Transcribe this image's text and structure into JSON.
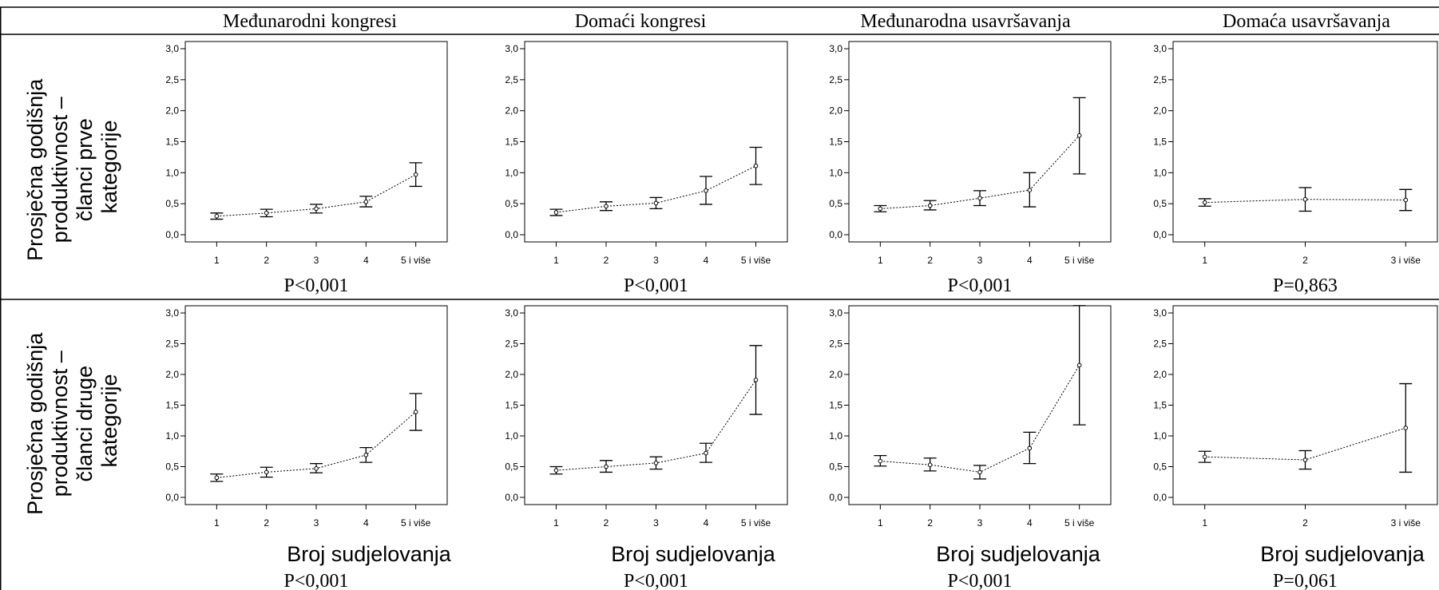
{
  "columns": [
    "Međunarodni kongresi",
    "Domaći kongresi",
    "Međunarodna usavršavanja",
    "Domaća usavršavanja"
  ],
  "row_labels": [
    [
      "Prosječna godišnja",
      "produktivnost –",
      "članci prve",
      "kategorije"
    ],
    [
      "Prosječna godišnja",
      "produktivnost –",
      "članci druge",
      "kategorije"
    ]
  ],
  "xlabel": "Broj sudjelovanja",
  "chart_data": [
    {
      "id": "r0c0",
      "type": "line",
      "error_bars": true,
      "row": 0,
      "col": 0,
      "categories": [
        "1",
        "2",
        "3",
        "4",
        "5 i više"
      ],
      "values": [
        0.3,
        0.35,
        0.42,
        0.53,
        0.97
      ],
      "ci_low": [
        0.25,
        0.29,
        0.35,
        0.45,
        0.78
      ],
      "ci_high": [
        0.35,
        0.41,
        0.49,
        0.62,
        1.16
      ],
      "ylim": [
        0,
        3
      ],
      "yticks": [
        "0,0",
        "0,5",
        "1,0",
        "1,5",
        "2,0",
        "2,5",
        "3,0"
      ],
      "p_value": "P<0,001"
    },
    {
      "id": "r0c1",
      "type": "line",
      "error_bars": true,
      "row": 0,
      "col": 1,
      "categories": [
        "1",
        "2",
        "3",
        "4",
        "5 i više"
      ],
      "values": [
        0.36,
        0.46,
        0.51,
        0.71,
        1.11
      ],
      "ci_low": [
        0.31,
        0.39,
        0.42,
        0.49,
        0.81
      ],
      "ci_high": [
        0.41,
        0.53,
        0.6,
        0.94,
        1.41
      ],
      "ylim": [
        0,
        3
      ],
      "yticks": [
        "0,0",
        "0,5",
        "1,0",
        "1,5",
        "2,0",
        "2,5",
        "3,0"
      ],
      "p_value": "P<0,001"
    },
    {
      "id": "r0c2",
      "type": "line",
      "error_bars": true,
      "row": 0,
      "col": 2,
      "categories": [
        "1",
        "2",
        "3",
        "4",
        "5 i više"
      ],
      "values": [
        0.42,
        0.47,
        0.59,
        0.72,
        1.6
      ],
      "ci_low": [
        0.37,
        0.4,
        0.47,
        0.45,
        0.98
      ],
      "ci_high": [
        0.47,
        0.55,
        0.71,
        1.0,
        2.21
      ],
      "ylim": [
        0,
        3
      ],
      "yticks": [
        "0,0",
        "0,5",
        "1,0",
        "1,5",
        "2,0",
        "2,5",
        "3,0"
      ],
      "p_value": "P<0,001"
    },
    {
      "id": "r0c3",
      "type": "line",
      "error_bars": true,
      "row": 0,
      "col": 3,
      "categories": [
        "1",
        "2",
        "3 i više"
      ],
      "values": [
        0.52,
        0.57,
        0.56
      ],
      "ci_low": [
        0.46,
        0.38,
        0.39
      ],
      "ci_high": [
        0.58,
        0.76,
        0.73
      ],
      "ylim": [
        0,
        3
      ],
      "yticks": [
        "0,0",
        "0,5",
        "1,0",
        "1,5",
        "2,0",
        "2,5",
        "3,0"
      ],
      "p_value": "P=0,863"
    },
    {
      "id": "r1c0",
      "type": "line",
      "error_bars": true,
      "row": 1,
      "col": 0,
      "categories": [
        "1",
        "2",
        "3",
        "4",
        "5 i više"
      ],
      "values": [
        0.32,
        0.41,
        0.47,
        0.69,
        1.39
      ],
      "ci_low": [
        0.26,
        0.33,
        0.4,
        0.57,
        1.09
      ],
      "ci_high": [
        0.38,
        0.49,
        0.55,
        0.81,
        1.69
      ],
      "ylim": [
        0,
        3
      ],
      "yticks": [
        "0,0",
        "0,5",
        "1,0",
        "1,5",
        "2,0",
        "2,5",
        "3,0"
      ],
      "p_value": "P<0,001"
    },
    {
      "id": "r1c1",
      "type": "line",
      "error_bars": true,
      "row": 1,
      "col": 1,
      "categories": [
        "1",
        "2",
        "3",
        "4",
        "5 i više"
      ],
      "values": [
        0.44,
        0.5,
        0.56,
        0.72,
        1.91
      ],
      "ci_low": [
        0.38,
        0.41,
        0.46,
        0.57,
        1.35
      ],
      "ci_high": [
        0.5,
        0.6,
        0.66,
        0.88,
        2.47
      ],
      "ylim": [
        0,
        3
      ],
      "yticks": [
        "0,0",
        "0,5",
        "1,0",
        "1,5",
        "2,0",
        "2,5",
        "3,0"
      ],
      "p_value": "P<0,001"
    },
    {
      "id": "r1c2",
      "type": "line",
      "error_bars": true,
      "row": 1,
      "col": 2,
      "categories": [
        "1",
        "2",
        "3",
        "4",
        "5 i više"
      ],
      "values": [
        0.59,
        0.53,
        0.41,
        0.8,
        2.15
      ],
      "ci_low": [
        0.51,
        0.43,
        0.3,
        0.55,
        1.18
      ],
      "ci_high": [
        0.68,
        0.64,
        0.52,
        1.06,
        3.12
      ],
      "ylim": [
        0,
        3
      ],
      "yticks": [
        "0,0",
        "0,5",
        "1,0",
        "1,5",
        "2,0",
        "2,5",
        "3,0"
      ],
      "p_value": "P<0,001"
    },
    {
      "id": "r1c3",
      "type": "line",
      "error_bars": true,
      "row": 1,
      "col": 3,
      "categories": [
        "1",
        "2",
        "3 i više"
      ],
      "values": [
        0.66,
        0.61,
        1.13
      ],
      "ci_low": [
        0.57,
        0.46,
        0.41
      ],
      "ci_high": [
        0.75,
        0.76,
        1.85
      ],
      "ylim": [
        0,
        3
      ],
      "yticks": [
        "0,0",
        "0,5",
        "1,0",
        "1,5",
        "2,0",
        "2,5",
        "3,0"
      ],
      "p_value": "P=0,061"
    }
  ]
}
